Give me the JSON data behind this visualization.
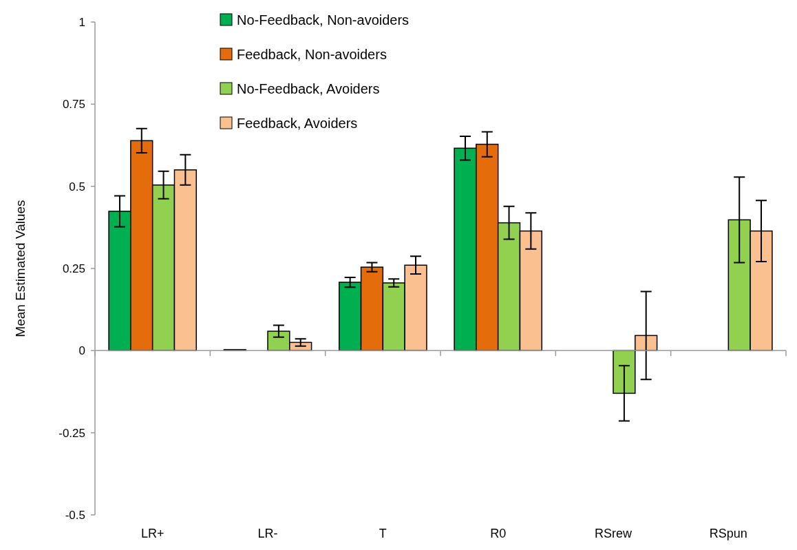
{
  "chart_data": {
    "type": "bar",
    "ylabel": "Mean Estimated Values",
    "categories": [
      "LR+",
      "LR-",
      "T",
      "R0",
      "RSrew",
      "RSpun"
    ],
    "ylim": [
      -0.5,
      1
    ],
    "yticks": [
      -0.5,
      -0.25,
      0,
      0.25,
      0.5,
      0.75,
      1
    ],
    "legend": "top",
    "series": [
      {
        "name": "No-Feedback, Non-avoiders",
        "color": "#00b050",
        "values": [
          0.424,
          0.003,
          0.208,
          0.616,
          null,
          null
        ],
        "errors": [
          0.047,
          null,
          0.015,
          0.036,
          null,
          null
        ]
      },
      {
        "name": "Feedback, Non-avoiders",
        "color": "#e46c0a",
        "values": [
          0.639,
          null,
          0.254,
          0.628,
          null,
          null
        ],
        "errors": [
          0.037,
          null,
          0.014,
          0.038,
          null,
          null
        ]
      },
      {
        "name": "No-Feedback, Avoiders",
        "color": "#92d050",
        "values": [
          0.504,
          0.059,
          0.206,
          0.389,
          -0.13,
          0.398
        ],
        "errors": [
          0.042,
          0.018,
          0.012,
          0.05,
          0.084,
          0.13
        ]
      },
      {
        "name": "Feedback, Avoiders",
        "color": "#fac090",
        "values": [
          0.55,
          0.025,
          0.26,
          0.364,
          0.046,
          0.364
        ],
        "errors": [
          0.046,
          0.011,
          0.027,
          0.055,
          0.134,
          0.093
        ]
      }
    ]
  }
}
